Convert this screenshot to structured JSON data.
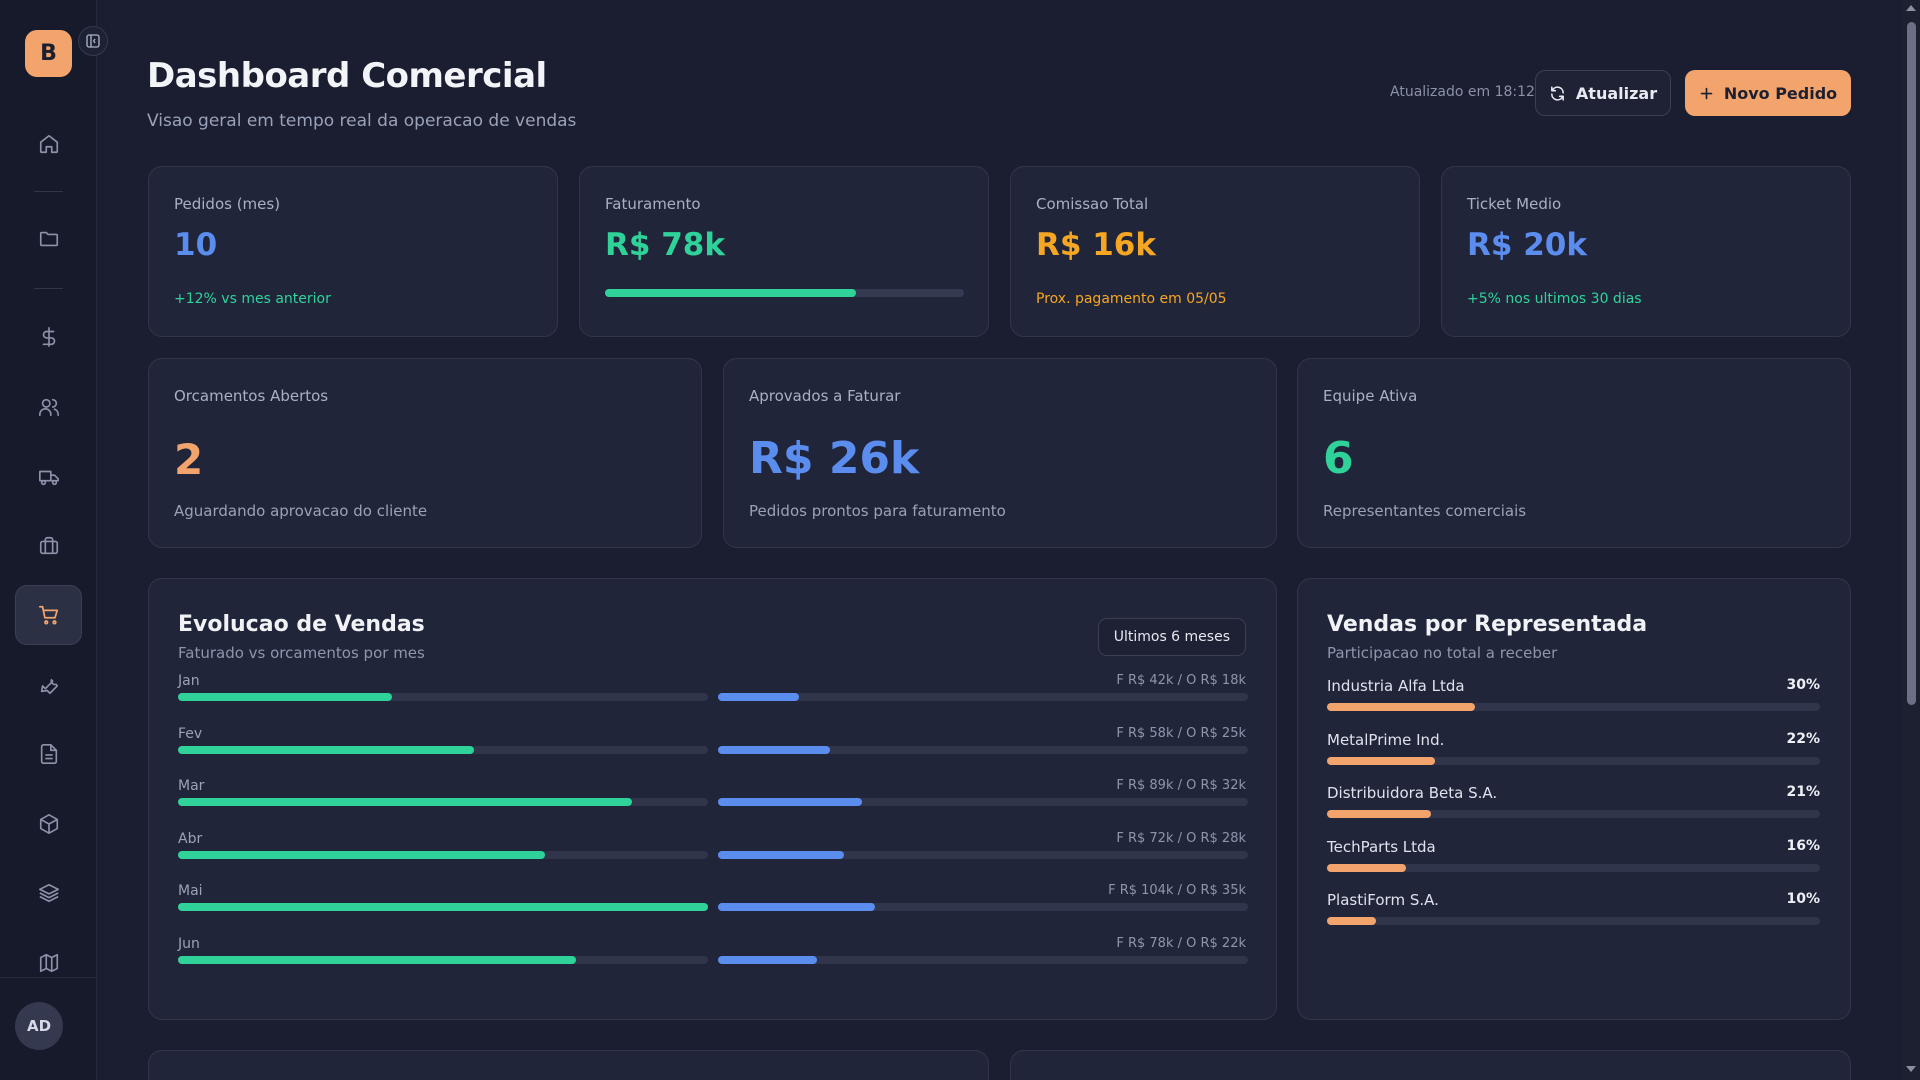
{
  "app": {
    "logo_letter": "B",
    "avatar_initials": "AD"
  },
  "header": {
    "title": "Dashboard Comercial",
    "subtitle": "Visao geral em tempo real da operacao de vendas",
    "updated_text": "Atualizado em 18:12",
    "refresh_label": "Atualizar",
    "new_order_label": "Novo Pedido"
  },
  "sidebar": {
    "items": [
      {
        "icon": "home-icon"
      },
      {
        "icon": "folder-icon"
      },
      {
        "icon": "dollar-icon"
      },
      {
        "icon": "users-icon"
      },
      {
        "icon": "truck-icon"
      },
      {
        "icon": "briefcase-icon"
      },
      {
        "icon": "cart-icon",
        "active": true
      },
      {
        "icon": "wrench-icon"
      },
      {
        "icon": "file-icon"
      },
      {
        "icon": "package-icon"
      },
      {
        "icon": "layers-icon"
      },
      {
        "icon": "map-icon"
      }
    ]
  },
  "kpis": {
    "pedidos": {
      "label": "Pedidos (mes)",
      "value": "10",
      "note": "+12% vs mes anterior"
    },
    "faturamento": {
      "label": "Faturamento",
      "value": "R$ 78k",
      "progress": 0.7
    },
    "comissao": {
      "label": "Comissao Total",
      "value": "R$ 16k",
      "note": "Prox. pagamento em 05/05"
    },
    "ticket": {
      "label": "Ticket Medio",
      "value": "R$ 20k",
      "note": "+5% nos ultimos 30 dias"
    }
  },
  "stats": {
    "orcamentos": {
      "label": "Orcamentos Abertos",
      "value": "2",
      "note": "Aguardando aprovacao do cliente"
    },
    "aprovados": {
      "label": "Aprovados a Faturar",
      "value": "R$ 26k",
      "note": "Pedidos prontos para faturamento"
    },
    "equipe": {
      "label": "Equipe Ativa",
      "value": "6",
      "note": "Representantes comerciais"
    }
  },
  "sales_panel": {
    "title": "Evolucao de Vendas",
    "subtitle": "Faturado vs orcamentos por mes",
    "period": "Ultimos 6 meses",
    "months": [
      {
        "label": "Jan",
        "values": "F R$ 42k / O R$ 18k",
        "faturado": 42,
        "orcamento": 18
      },
      {
        "label": "Fev",
        "values": "F R$ 58k / O R$ 25k",
        "faturado": 58,
        "orcamento": 25
      },
      {
        "label": "Mar",
        "values": "F R$ 89k / O R$ 32k",
        "faturado": 89,
        "orcamento": 32
      },
      {
        "label": "Abr",
        "values": "F R$ 72k / O R$ 28k",
        "faturado": 72,
        "orcamento": 28
      },
      {
        "label": "Mai",
        "values": "F R$ 104k / O R$ 35k",
        "faturado": 104,
        "orcamento": 35
      },
      {
        "label": "Jun",
        "values": "F R$ 78k / O R$ 22k",
        "faturado": 78,
        "orcamento": 22
      }
    ]
  },
  "reps_panel": {
    "title": "Vendas por Representada",
    "subtitle": "Participacao no total a receber",
    "items": [
      {
        "name": "Industria Alfa Ltda",
        "pct_label": "30%",
        "pct": 30
      },
      {
        "name": "MetalPrime Ind.",
        "pct_label": "22%",
        "pct": 22
      },
      {
        "name": "Distribuidora Beta S.A.",
        "pct_label": "21%",
        "pct": 21
      },
      {
        "name": "TechParts Ltda",
        "pct_label": "16%",
        "pct": 16
      },
      {
        "name": "PlastiForm S.A.",
        "pct_label": "10%",
        "pct": 10
      }
    ]
  },
  "colors": {
    "accent": "#f2a46c",
    "green": "#2fd39a",
    "blue": "#5b8def",
    "orange": "#f5a623",
    "stat_blue": "#5b8def"
  }
}
